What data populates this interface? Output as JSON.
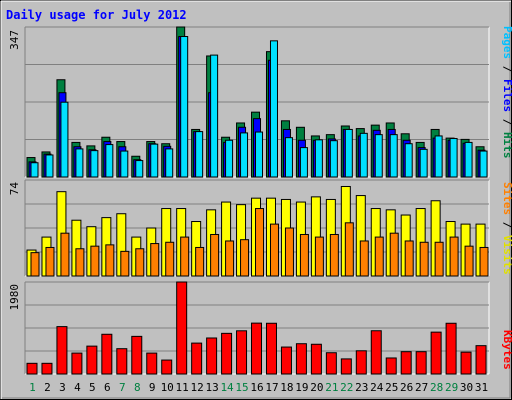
{
  "chart_data": [
    {
      "type": "bar",
      "title": "Daily usage for July 2012",
      "ylabel": "Pages / Files / Hits",
      "ymax_label": "347",
      "ylim": [
        0,
        347
      ],
      "categories": [
        "1",
        "2",
        "3",
        "4",
        "5",
        "6",
        "7",
        "8",
        "9",
        "10",
        "11",
        "12",
        "13",
        "14",
        "15",
        "16",
        "17",
        "18",
        "19",
        "20",
        "21",
        "22",
        "23",
        "24",
        "25",
        "26",
        "27",
        "28",
        "29",
        "30",
        "31"
      ],
      "series": [
        {
          "name": "Hits",
          "color": "#008040",
          "values": [
            45,
            58,
            225,
            80,
            72,
            92,
            82,
            48,
            82,
            77,
            347,
            110,
            280,
            92,
            125,
            150,
            290,
            130,
            115,
            95,
            98,
            118,
            112,
            120,
            125,
            100,
            80,
            110,
            90,
            87,
            70
          ]
        },
        {
          "name": "Files",
          "color": "#0000ff",
          "values": [
            35,
            53,
            195,
            70,
            63,
            82,
            70,
            40,
            77,
            71,
            325,
            105,
            195,
            80,
            115,
            135,
            270,
            110,
            85,
            85,
            88,
            110,
            95,
            108,
            110,
            85,
            68,
            90,
            85,
            78,
            62
          ]
        },
        {
          "name": "Pages",
          "color": "#00e0ff",
          "values": [
            33,
            51,
            173,
            65,
            61,
            75,
            60,
            38,
            76,
            65,
            325,
            105,
            282,
            85,
            102,
            104,
            315,
            91,
            68,
            86,
            84,
            110,
            101,
            98,
            98,
            77,
            64,
            95,
            89,
            80,
            60
          ]
        }
      ]
    },
    {
      "type": "bar",
      "ylabel": "Sites / Visits",
      "ymax_label": "74",
      "ylim": [
        0,
        74
      ],
      "categories": [
        "1",
        "2",
        "3",
        "4",
        "5",
        "6",
        "7",
        "8",
        "9",
        "10",
        "11",
        "12",
        "13",
        "14",
        "15",
        "16",
        "17",
        "18",
        "19",
        "20",
        "21",
        "22",
        "23",
        "24",
        "25",
        "26",
        "27",
        "28",
        "29",
        "30",
        "31"
      ],
      "series": [
        {
          "name": "Visits",
          "color": "#ffff00",
          "values": [
            20,
            30,
            65,
            43,
            38,
            45,
            48,
            30,
            37,
            52,
            52,
            42,
            51,
            57,
            55,
            60,
            60,
            59,
            57,
            61,
            59,
            69,
            62,
            52,
            51,
            47,
            52,
            58,
            42,
            40,
            40
          ]
        },
        {
          "name": "Sites",
          "color": "#ff8000",
          "values": [
            18,
            22,
            33,
            21,
            23,
            24,
            19,
            21,
            25,
            26,
            30,
            22,
            32,
            27,
            28,
            52,
            40,
            37,
            32,
            30,
            32,
            41,
            27,
            30,
            33,
            27,
            26,
            26,
            30,
            23,
            22
          ]
        }
      ]
    },
    {
      "type": "bar",
      "ylabel": "KBytes",
      "ymax_label": "1980",
      "ylim": [
        0,
        1980
      ],
      "categories": [
        "1",
        "2",
        "3",
        "4",
        "5",
        "6",
        "7",
        "8",
        "9",
        "10",
        "11",
        "12",
        "13",
        "14",
        "15",
        "16",
        "17",
        "18",
        "19",
        "20",
        "21",
        "22",
        "23",
        "24",
        "25",
        "26",
        "27",
        "28",
        "29",
        "30",
        "31"
      ],
      "series": [
        {
          "name": "KBytes",
          "color": "#ff0000",
          "values": [
            230,
            230,
            1020,
            450,
            600,
            855,
            545,
            810,
            450,
            300,
            1980,
            665,
            775,
            875,
            930,
            1095,
            1092,
            580,
            652,
            640,
            458,
            325,
            500,
            931,
            345,
            480,
            480,
            901,
            1092,
            470,
            610
          ]
        }
      ]
    }
  ]
}
